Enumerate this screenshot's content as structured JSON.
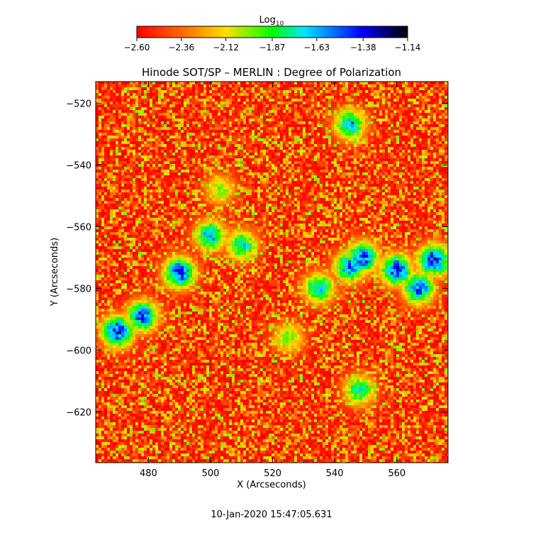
{
  "chart_data": {
    "type": "heatmap",
    "title": "Hinode SOT/SP – MERLIN : Degree of Polarization",
    "xlabel": "X (Arcseconds)",
    "ylabel": "Y (Arcseconds)",
    "x_ticks": [
      "480",
      "500",
      "520",
      "540",
      "560"
    ],
    "x_tick_values": [
      480,
      500,
      520,
      540,
      560
    ],
    "y_ticks": [
      "−520",
      "−540",
      "−560",
      "−580",
      "−600",
      "−620"
    ],
    "y_tick_values": [
      -520,
      -540,
      -560,
      -580,
      -600,
      -620
    ],
    "xlim": [
      463,
      576.5
    ],
    "ylim": [
      -636.5,
      -513
    ],
    "colorbar": {
      "label_base": "Log",
      "label_sub": "10",
      "range": [
        -2.6,
        -1.14
      ],
      "ticks": [
        "−2.60",
        "−2.36",
        "−2.12",
        "−1.87",
        "−1.63",
        "−1.38",
        "−1.14"
      ],
      "tick_values": [
        -2.6,
        -2.36,
        -2.12,
        -1.87,
        -1.63,
        -1.38,
        -1.14
      ],
      "colormap": [
        "#ff0000",
        "#ff6a00",
        "#ffe000",
        "#00ff00",
        "#00e6ff",
        "#0000ff",
        "#000000"
      ]
    },
    "features": [
      {
        "x": 490,
        "y": -575,
        "level": -1.35
      },
      {
        "x": 478,
        "y": -589,
        "level": -1.4
      },
      {
        "x": 470,
        "y": -594,
        "level": -1.3
      },
      {
        "x": 500,
        "y": -563,
        "level": -1.55
      },
      {
        "x": 510,
        "y": -566,
        "level": -1.65
      },
      {
        "x": 545,
        "y": -573,
        "level": -1.45
      },
      {
        "x": 560,
        "y": -574,
        "level": -1.3
      },
      {
        "x": 572,
        "y": -571,
        "level": -1.28
      },
      {
        "x": 549,
        "y": -570,
        "level": -1.35
      },
      {
        "x": 535,
        "y": -580,
        "level": -1.6
      },
      {
        "x": 567,
        "y": -580,
        "level": -1.4
      },
      {
        "x": 545,
        "y": -527,
        "level": -1.55
      },
      {
        "x": 548,
        "y": -613,
        "level": -1.7
      },
      {
        "x": 525,
        "y": -596,
        "level": -1.9
      },
      {
        "x": 503,
        "y": -548,
        "level": -1.95
      }
    ]
  },
  "timestamp": "10-Jan-2020 15:47:05.631"
}
